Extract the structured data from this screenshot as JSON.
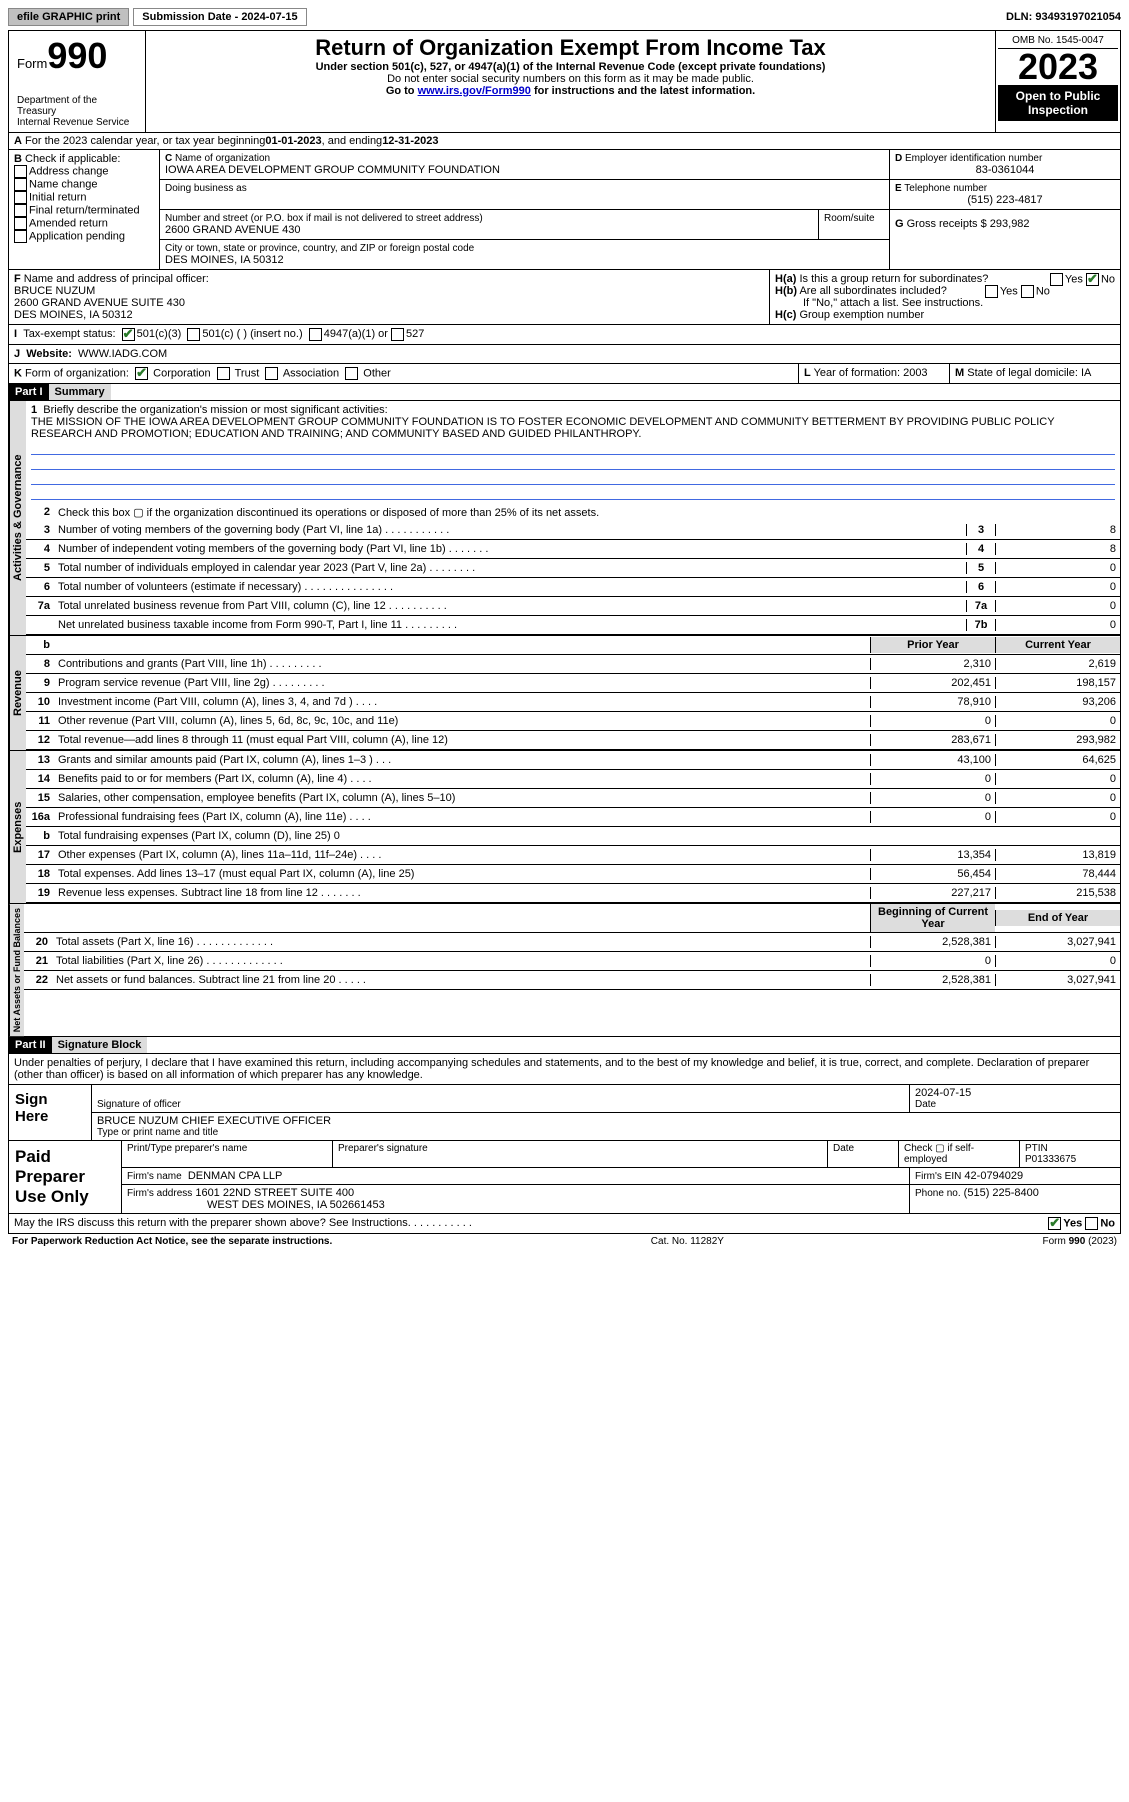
{
  "topbar": {
    "efile": "efile GRAPHIC print",
    "submission": "Submission Date - 2024-07-15",
    "dln": "DLN: 93493197021054"
  },
  "header": {
    "form_word": "Form",
    "form_num": "990",
    "title": "Return of Organization Exempt From Income Tax",
    "subtitle": "Under section 501(c), 527, or 4947(a)(1) of the Internal Revenue Code (except private foundations)",
    "ssn_note": "Do not enter social security numbers on this form as it may be made public.",
    "goto": "Go to ",
    "goto_link": "www.irs.gov/Form990",
    "goto_after": " for instructions and the latest information.",
    "omb": "OMB No. 1545-0047",
    "year": "2023",
    "open": "Open to Public Inspection",
    "dept": "Department of the Treasury",
    "irs": "Internal Revenue Service"
  },
  "a": {
    "label": "For the 2023 calendar year, or tax year beginning ",
    "begin": "01-01-2023",
    "mid": " , and ending ",
    "end": "12-31-2023"
  },
  "b": {
    "label": "Check if applicable:",
    "items": [
      "Address change",
      "Name change",
      "Initial return",
      "Final return/terminated",
      "Amended return",
      "Application pending"
    ]
  },
  "c": {
    "label": "Name of organization",
    "name": "IOWA AREA DEVELOPMENT GROUP COMMUNITY FOUNDATION",
    "dba_label": "Doing business as",
    "street_label": "Number and street (or P.O. box if mail is not delivered to street address)",
    "room_label": "Room/suite",
    "street": "2600 GRAND AVENUE 430",
    "city_label": "City or town, state or province, country, and ZIP or foreign postal code",
    "city": "DES MOINES, IA  50312"
  },
  "d": {
    "label": "Employer identification number",
    "val": "83-0361044"
  },
  "e": {
    "label": "Telephone number",
    "val": "(515) 223-4817"
  },
  "g": {
    "label": "Gross receipts $",
    "val": "293,982"
  },
  "f": {
    "label": "Name and address of principal officer:",
    "name": "BRUCE NUZUM",
    "addr1": "2600 GRAND AVENUE SUITE 430",
    "addr2": "DES MOINES, IA  50312"
  },
  "h": {
    "a": "Is this a group return for subordinates?",
    "b": "Are all subordinates included?",
    "note": "If \"No,\" attach a list. See instructions.",
    "c": "Group exemption number"
  },
  "i": {
    "label": "Tax-exempt status:",
    "o1": "501(c)(3)",
    "o2": "501(c) (  ) (insert no.)",
    "o3": "4947(a)(1) or",
    "o4": "527"
  },
  "j": {
    "label": "Website:",
    "val": "WWW.IADG.COM"
  },
  "k": {
    "label": "Form of organization:",
    "o1": "Corporation",
    "o2": "Trust",
    "o3": "Association",
    "o4": "Other"
  },
  "l": {
    "label": "Year of formation:",
    "val": "2003"
  },
  "m": {
    "label": "State of legal domicile:",
    "val": "IA"
  },
  "part1": {
    "bar": "Part I",
    "title": "Summary"
  },
  "mission": {
    "num": "1",
    "label": "Briefly describe the organization's mission or most significant activities:",
    "text": "THE MISSION OF THE IOWA AREA DEVELOPMENT GROUP COMMUNITY FOUNDATION IS TO FOSTER ECONOMIC DEVELOPMENT AND COMMUNITY BETTERMENT BY PROVIDING PUBLIC POLICY RESEARCH AND PROMOTION; EDUCATION AND TRAINING; AND COMMUNITY BASED AND GUIDED PHILANTHROPY."
  },
  "gov_lines": [
    {
      "n": "2",
      "t": "Check this box ▢ if the organization discontinued its operations or disposed of more than 25% of its net assets."
    },
    {
      "n": "3",
      "t": "Number of voting members of the governing body (Part VI, line 1a)   .    .    .    .    .    .    .    .    .    .    .",
      "r": "3",
      "v": "8"
    },
    {
      "n": "4",
      "t": "Number of independent voting members of the governing body (Part VI, line 1b)   .    .    .    .    .    .    .",
      "r": "4",
      "v": "8"
    },
    {
      "n": "5",
      "t": "Total number of individuals employed in calendar year 2023 (Part V, line 2a)   .    .    .    .    .    .    .    .",
      "r": "5",
      "v": "0"
    },
    {
      "n": "6",
      "t": "Total number of volunteers (estimate if necessary)   .    .    .    .    .    .    .    .    .    .    .    .    .    .    .",
      "r": "6",
      "v": "0"
    },
    {
      "n": "7a",
      "t": "Total unrelated business revenue from Part VIII, column (C), line 12   .    .    .    .    .    .    .    .    .    .",
      "r": "7a",
      "v": "0"
    },
    {
      "n": "",
      "t": "Net unrelated business taxable income from Form 990-T, Part I, line 11   .    .    .    .    .    .    .    .    .",
      "r": "7b",
      "v": "0"
    }
  ],
  "rev_hdr": {
    "b": "b",
    "py": "Prior Year",
    "cy": "Current Year"
  },
  "rev_lines": [
    {
      "n": "8",
      "t": "Contributions and grants (Part VIII, line 1h)   .    .    .    .    .    .    .    .    .",
      "p": "2,310",
      "c": "2,619"
    },
    {
      "n": "9",
      "t": "Program service revenue (Part VIII, line 2g)   .    .    .    .    .    .    .    .    .",
      "p": "202,451",
      "c": "198,157"
    },
    {
      "n": "10",
      "t": "Investment income (Part VIII, column (A), lines 3, 4, and 7d )   .    .    .    .",
      "p": "78,910",
      "c": "93,206"
    },
    {
      "n": "11",
      "t": "Other revenue (Part VIII, column (A), lines 5, 6d, 8c, 9c, 10c, and 11e)",
      "p": "0",
      "c": "0"
    },
    {
      "n": "12",
      "t": "Total revenue—add lines 8 through 11 (must equal Part VIII, column (A), line 12)",
      "p": "283,671",
      "c": "293,982"
    }
  ],
  "exp_lines": [
    {
      "n": "13",
      "t": "Grants and similar amounts paid (Part IX, column (A), lines 1–3 )   .    .    .",
      "p": "43,100",
      "c": "64,625"
    },
    {
      "n": "14",
      "t": "Benefits paid to or for members (Part IX, column (A), line 4)   .    .    .    .",
      "p": "0",
      "c": "0"
    },
    {
      "n": "15",
      "t": "Salaries, other compensation, employee benefits (Part IX, column (A), lines 5–10)",
      "p": "0",
      "c": "0"
    },
    {
      "n": "16a",
      "t": "Professional fundraising fees (Part IX, column (A), line 11e)   .    .    .    .",
      "p": "0",
      "c": "0"
    },
    {
      "n": "b",
      "t": "Total fundraising expenses (Part IX, column (D), line 25) 0",
      "p": "",
      "c": ""
    },
    {
      "n": "17",
      "t": "Other expenses (Part IX, column (A), lines 11a–11d, 11f–24e)   .    .    .    .",
      "p": "13,354",
      "c": "13,819"
    },
    {
      "n": "18",
      "t": "Total expenses. Add lines 13–17 (must equal Part IX, column (A), line 25)",
      "p": "56,454",
      "c": "78,444"
    },
    {
      "n": "19",
      "t": "Revenue less expenses. Subtract line 18 from line 12   .    .    .    .    .    .    .",
      "p": "227,217",
      "c": "215,538"
    }
  ],
  "na_hdr": {
    "b": "Beginning of Current Year",
    "e": "End of Year"
  },
  "na_lines": [
    {
      "n": "20",
      "t": "Total assets (Part X, line 16)   .    .    .    .    .    .    .    .    .    .    .    .    .",
      "p": "2,528,381",
      "c": "3,027,941"
    },
    {
      "n": "21",
      "t": "Total liabilities (Part X, line 26)   .    .    .    .    .    .    .    .    .    .    .    .    .",
      "p": "0",
      "c": "0"
    },
    {
      "n": "22",
      "t": "Net assets or fund balances. Subtract line 21 from line 20   .    .    .    .    .",
      "p": "2,528,381",
      "c": "3,027,941"
    }
  ],
  "part2": {
    "bar": "Part II",
    "title": "Signature Block"
  },
  "perjury": "Under penalties of perjury, I declare that I have examined this return, including accompanying schedules and statements, and to the best of my knowledge and belief, it is true, correct, and complete. Declaration of preparer (other than officer) is based on all information of which preparer has any knowledge.",
  "sign": {
    "label": "Sign Here",
    "sig_label": "Signature of officer",
    "date_label": "Date",
    "date": "2024-07-15",
    "name": "BRUCE NUZUM  CHIEF EXECUTIVE OFFICER",
    "name_label": "Type or print name and title"
  },
  "paid": {
    "label": "Paid Preparer Use Only",
    "col1": "Print/Type preparer's name",
    "col2": "Preparer's signature",
    "col3": "Date",
    "col4a": "Check ▢ if self-employed",
    "col5": "PTIN",
    "ptin": "P01333675",
    "firm_name_label": "Firm's name",
    "firm_name": "DENMAN CPA LLP",
    "firm_ein_label": "Firm's EIN",
    "firm_ein": "42-0794029",
    "firm_addr_label": "Firm's address",
    "firm_addr1": "1601 22ND STREET SUITE 400",
    "firm_addr2": "WEST DES MOINES, IA  502661453",
    "phone_label": "Phone no.",
    "phone": "(515) 225-8400"
  },
  "discuss": "May the IRS discuss this return with the preparer shown above? See Instructions.   .    .    .    .    .    .    .    .    .    .",
  "footer": {
    "pra": "For Paperwork Reduction Act Notice, see the separate instructions.",
    "cat": "Cat. No. 11282Y",
    "form": "Form 990 (2023)"
  },
  "labels": {
    "vert_gov": "Activities & Governance",
    "vert_rev": "Revenue",
    "vert_exp": "Expenses",
    "vert_na": "Net Assets or Fund Balances",
    "yes": "Yes",
    "no": "No"
  }
}
